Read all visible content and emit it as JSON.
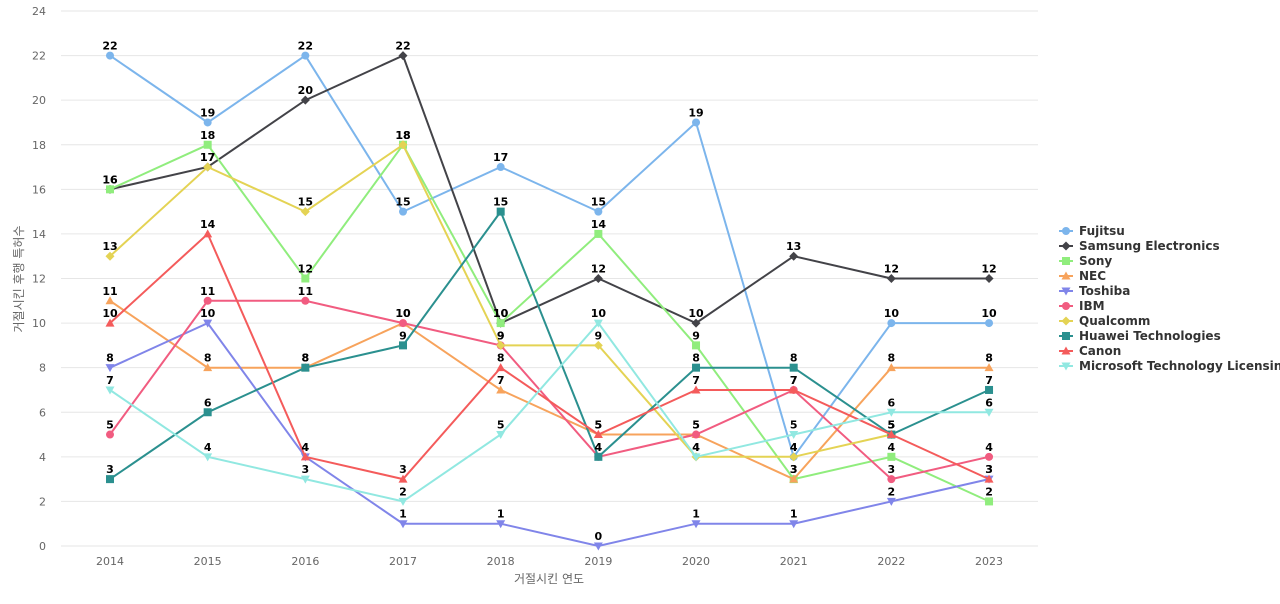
{
  "chart_data": {
    "type": "line",
    "xlabel": "거절시킨 연도",
    "ylabel": "거절시킨 후행 특허수",
    "x": [
      "2014",
      "2015",
      "2016",
      "2017",
      "2018",
      "2019",
      "2020",
      "2021",
      "2022",
      "2023"
    ],
    "ylim": [
      0,
      24
    ],
    "yticks": [
      0,
      2,
      4,
      6,
      8,
      10,
      12,
      14,
      16,
      18,
      20,
      22,
      24
    ],
    "grid": true,
    "legend_position": "right",
    "series": [
      {
        "name": "Fujitsu",
        "color": "#7cb5ec",
        "marker": "circle",
        "values": [
          22,
          19,
          22,
          15,
          17,
          15,
          19,
          4,
          10,
          10
        ]
      },
      {
        "name": "Samsung Electronics",
        "color": "#434348",
        "marker": "diamond",
        "values": [
          16,
          17,
          20,
          22,
          10,
          12,
          10,
          13,
          12,
          12
        ]
      },
      {
        "name": "Sony",
        "color": "#90ed7d",
        "marker": "square",
        "values": [
          16,
          18,
          12,
          18,
          10,
          14,
          9,
          3,
          4,
          2
        ]
      },
      {
        "name": "NEC",
        "color": "#f7a35c",
        "marker": "triangle",
        "values": [
          11,
          8,
          8,
          10,
          7,
          5,
          5,
          3,
          8,
          8
        ]
      },
      {
        "name": "Toshiba",
        "color": "#8085e9",
        "marker": "triangle-down",
        "values": [
          8,
          10,
          4,
          1,
          1,
          0,
          1,
          1,
          2,
          3
        ]
      },
      {
        "name": "IBM",
        "color": "#f15c80",
        "marker": "circle",
        "values": [
          5,
          11,
          11,
          10,
          9,
          4,
          5,
          7,
          3,
          4
        ]
      },
      {
        "name": "Qualcomm",
        "color": "#e4d354",
        "marker": "diamond",
        "values": [
          13,
          17,
          15,
          18,
          9,
          9,
          4,
          4,
          5,
          null
        ]
      },
      {
        "name": "Huawei Technologies",
        "color": "#2b908f",
        "marker": "square",
        "values": [
          3,
          6,
          8,
          9,
          15,
          4,
          8,
          8,
          5,
          7
        ]
      },
      {
        "name": "Canon",
        "color": "#f45b5b",
        "marker": "triangle",
        "values": [
          10,
          14,
          4,
          3,
          8,
          5,
          7,
          7,
          5,
          3
        ]
      },
      {
        "name": "Microsoft Technology Licensing",
        "color": "#91e8e1",
        "marker": "triangle-down",
        "values": [
          7,
          4,
          3,
          2,
          5,
          10,
          4,
          5,
          6,
          6
        ]
      }
    ]
  }
}
